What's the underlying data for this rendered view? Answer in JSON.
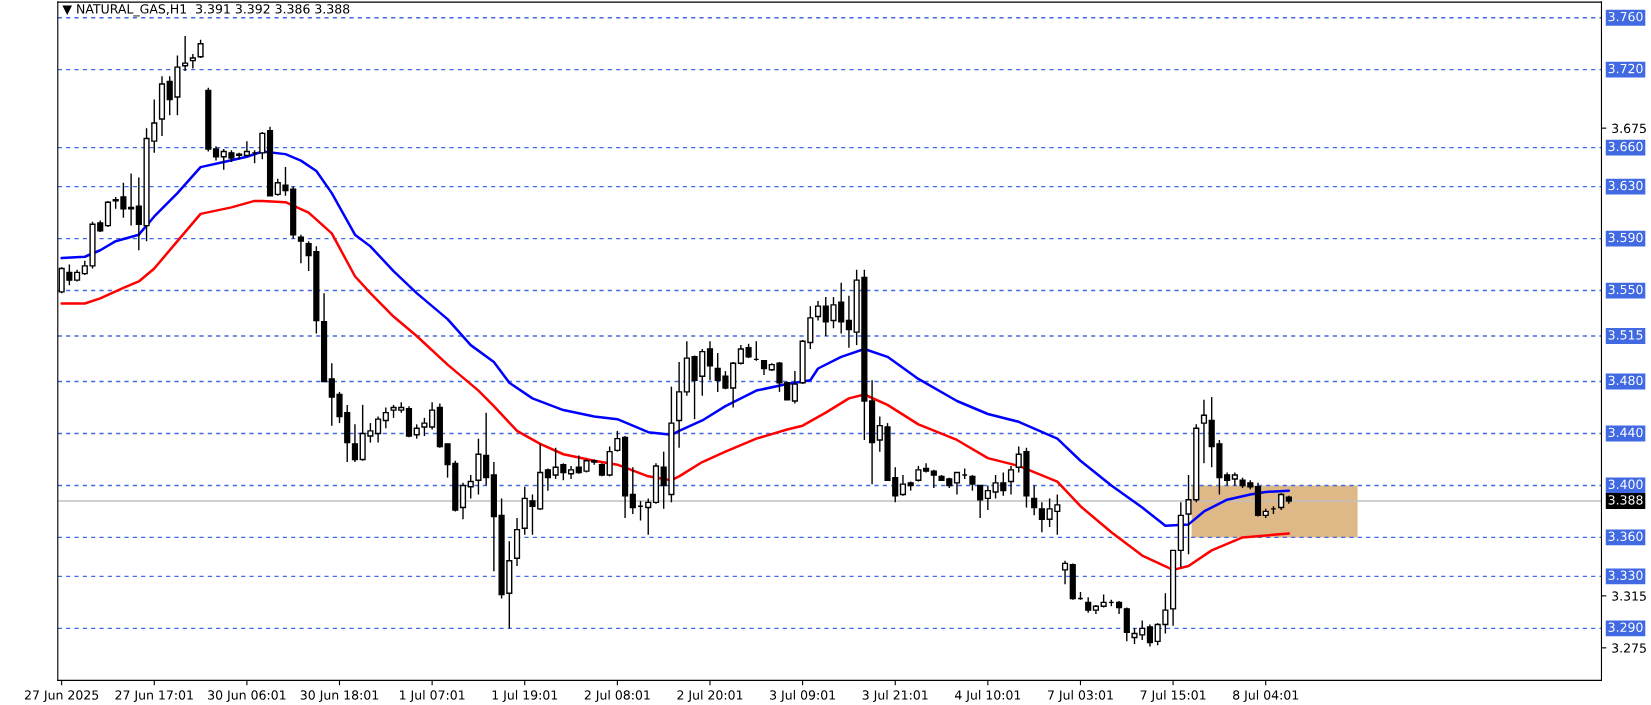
{
  "chart_data": {
    "type": "candlestick",
    "title": "▼ NATURAL_GAS,H1  3.391 3.392 3.386 3.388",
    "categories": [
      "27 Jun 2025",
      null,
      null,
      null,
      null,
      null,
      null,
      null,
      null,
      null,
      null,
      null,
      "27 Jun 17:01",
      null,
      null,
      null,
      null,
      null,
      null,
      null,
      null,
      null,
      null,
      null,
      "30 Jun 06:01",
      null,
      null,
      null,
      null,
      null,
      null,
      null,
      null,
      null,
      null,
      null,
      "30 Jun 18:01",
      null,
      null,
      null,
      null,
      null,
      null,
      null,
      null,
      null,
      null,
      null,
      "1 Jul 07:01",
      null,
      null,
      null,
      null,
      null,
      null,
      null,
      null,
      null,
      null,
      null,
      "1 Jul 19:01",
      null,
      null,
      null,
      null,
      null,
      null,
      null,
      null,
      null,
      null,
      null,
      "2 Jul 08:01",
      null,
      null,
      null,
      null,
      null,
      null,
      null,
      null,
      null,
      null,
      null,
      "2 Jul 20:01",
      null,
      null,
      null,
      null,
      null,
      null,
      null,
      null,
      null,
      null,
      null,
      "3 Jul 09:01",
      null,
      null,
      null,
      null,
      null,
      null,
      null,
      null,
      null,
      null,
      null,
      "3 Jul 21:01",
      null,
      null,
      null,
      null,
      null,
      null,
      null,
      null,
      null,
      null,
      null,
      "4 Jul 10:01",
      null,
      null,
      null,
      null,
      null,
      null,
      null,
      null,
      null,
      null,
      null,
      "7 Jul 03:01",
      null,
      null,
      null,
      null,
      null,
      null,
      null,
      null,
      null,
      null,
      null,
      "7 Jul 15:01",
      null,
      null,
      null,
      null,
      null,
      null,
      null,
      null,
      null,
      null,
      null,
      "8 Jul 04:01",
      null,
      null,
      null,
      null,
      null,
      null,
      null,
      null,
      null,
      null,
      null,
      null,
      null,
      null,
      null,
      null,
      null,
      null,
      null,
      null,
      null,
      null,
      null,
      null,
      null,
      null,
      null,
      null,
      null,
      null,
      null,
      null,
      null,
      null,
      null,
      null,
      null,
      null,
      null,
      null,
      null,
      null,
      null
    ],
    "ohlc": [
      [
        3.549,
        3.568,
        3.548,
        3.567
      ],
      [
        3.564,
        3.57,
        3.554,
        3.558
      ],
      [
        3.558,
        3.566,
        3.557,
        3.564
      ],
      [
        3.563,
        3.573,
        3.562,
        3.569
      ],
      [
        3.569,
        3.603,
        3.567,
        3.601
      ],
      [
        3.602,
        3.604,
        3.595,
        3.596
      ],
      [
        3.6,
        3.619,
        3.599,
        3.618
      ],
      [
        3.619,
        3.622,
        3.613,
        3.62
      ],
      [
        3.622,
        3.633,
        3.606,
        3.613
      ],
      [
        3.614,
        3.64,
        3.6,
        3.613
      ],
      [
        3.615,
        3.637,
        3.581,
        3.601
      ],
      [
        3.6,
        3.675,
        3.588,
        3.667
      ],
      [
        3.665,
        3.697,
        3.656,
        3.679
      ],
      [
        3.682,
        3.715,
        3.669,
        3.709
      ],
      [
        3.711,
        3.715,
        3.685,
        3.697
      ],
      [
        3.699,
        3.731,
        3.685,
        3.722
      ],
      [
        3.723,
        3.746,
        3.719,
        3.725
      ],
      [
        3.727,
        3.732,
        3.721,
        3.729
      ],
      [
        3.73,
        3.743,
        3.729,
        3.74
      ],
      [
        3.704,
        3.706,
        3.657,
        3.659
      ],
      [
        3.659,
        3.661,
        3.65,
        3.653
      ],
      [
        3.653,
        3.659,
        3.643,
        3.657
      ],
      [
        3.656,
        3.658,
        3.649,
        3.652
      ],
      [
        3.654,
        3.656,
        3.651,
        3.655
      ],
      [
        3.654,
        3.665,
        3.653,
        3.657
      ],
      [
        3.656,
        3.658,
        3.648,
        3.656
      ],
      [
        3.656,
        3.672,
        3.651,
        3.671
      ],
      [
        3.673,
        3.676,
        3.623,
        3.623
      ],
      [
        3.624,
        3.636,
        3.623,
        3.633
      ],
      [
        3.631,
        3.645,
        3.623,
        3.627
      ],
      [
        3.628,
        3.63,
        3.59,
        3.593
      ],
      [
        3.591,
        3.593,
        3.571,
        3.588
      ],
      [
        3.586,
        3.588,
        3.565,
        3.577
      ],
      [
        3.58,
        3.584,
        3.517,
        3.527
      ],
      [
        3.526,
        3.548,
        3.48,
        3.48
      ],
      [
        3.482,
        3.494,
        3.446,
        3.468
      ],
      [
        3.47,
        3.472,
        3.448,
        3.453
      ],
      [
        3.456,
        3.462,
        3.418,
        3.433
      ],
      [
        3.432,
        3.447,
        3.418,
        3.42
      ],
      [
        3.42,
        3.462,
        3.419,
        3.44
      ],
      [
        3.438,
        3.448,
        3.433,
        3.442
      ],
      [
        3.44,
        3.453,
        3.433,
        3.451
      ],
      [
        3.45,
        3.46,
        3.444,
        3.456
      ],
      [
        3.458,
        3.462,
        3.452,
        3.46
      ],
      [
        3.458,
        3.464,
        3.456,
        3.46
      ],
      [
        3.459,
        3.461,
        3.437,
        3.438
      ],
      [
        3.439,
        3.447,
        3.436,
        3.444
      ],
      [
        3.445,
        3.452,
        3.438,
        3.448
      ],
      [
        3.445,
        3.464,
        3.443,
        3.458
      ],
      [
        3.46,
        3.463,
        3.429,
        3.43
      ],
      [
        3.432,
        3.432,
        3.406,
        3.416
      ],
      [
        3.417,
        3.419,
        3.38,
        3.381
      ],
      [
        3.383,
        3.402,
        3.374,
        3.4
      ],
      [
        3.399,
        3.408,
        3.39,
        3.403
      ],
      [
        3.404,
        3.436,
        3.393,
        3.424
      ],
      [
        3.423,
        3.456,
        3.4,
        3.406
      ],
      [
        3.408,
        3.418,
        3.334,
        3.376
      ],
      [
        3.377,
        3.39,
        3.313,
        3.316
      ],
      [
        3.317,
        3.357,
        3.29,
        3.342
      ],
      [
        3.344,
        3.375,
        3.338,
        3.366
      ],
      [
        3.367,
        3.399,
        3.362,
        3.39
      ],
      [
        3.388,
        3.393,
        3.362,
        3.384
      ],
      [
        3.382,
        3.432,
        3.381,
        3.41
      ],
      [
        3.412,
        3.413,
        3.396,
        3.406
      ],
      [
        3.408,
        3.429,
        3.405,
        3.414
      ],
      [
        3.416,
        3.417,
        3.404,
        3.41
      ],
      [
        3.409,
        3.415,
        3.405,
        3.412
      ],
      [
        3.414,
        3.423,
        3.409,
        3.41
      ],
      [
        3.411,
        3.42,
        3.41,
        3.419
      ],
      [
        3.419,
        3.42,
        3.416,
        3.418
      ],
      [
        3.416,
        3.417,
        3.407,
        3.408
      ],
      [
        3.408,
        3.43,
        3.407,
        3.426
      ],
      [
        3.427,
        3.442,
        3.426,
        3.436
      ],
      [
        3.437,
        3.438,
        3.375,
        3.392
      ],
      [
        3.393,
        3.414,
        3.378,
        3.383
      ],
      [
        3.384,
        3.388,
        3.373,
        3.384
      ],
      [
        3.383,
        3.39,
        3.362,
        3.387
      ],
      [
        3.387,
        3.417,
        3.386,
        3.415
      ],
      [
        3.414,
        3.426,
        3.382,
        3.4
      ],
      [
        3.393,
        3.476,
        3.387,
        3.448
      ],
      [
        3.45,
        3.495,
        3.429,
        3.472
      ],
      [
        3.472,
        3.511,
        3.469,
        3.498
      ],
      [
        3.499,
        3.5,
        3.451,
        3.481
      ],
      [
        3.484,
        3.505,
        3.469,
        3.503
      ],
      [
        3.505,
        3.511,
        3.481,
        3.492
      ],
      [
        3.49,
        3.502,
        3.472,
        3.481
      ],
      [
        3.484,
        3.488,
        3.474,
        3.475
      ],
      [
        3.475,
        3.495,
        3.46,
        3.494
      ],
      [
        3.494,
        3.508,
        3.493,
        3.505
      ],
      [
        3.506,
        3.509,
        3.498,
        3.499
      ],
      [
        3.497,
        3.511,
        3.496,
        3.497
      ],
      [
        3.496,
        3.496,
        3.485,
        3.49
      ],
      [
        3.489,
        3.494,
        3.488,
        3.493
      ],
      [
        3.494,
        3.495,
        3.472,
        3.479
      ],
      [
        3.479,
        3.48,
        3.466,
        3.466
      ],
      [
        3.465,
        3.488,
        3.463,
        3.478
      ],
      [
        3.479,
        3.512,
        3.478,
        3.511
      ],
      [
        3.51,
        3.538,
        3.505,
        3.529
      ],
      [
        3.53,
        3.542,
        3.527,
        3.538
      ],
      [
        3.538,
        3.545,
        3.515,
        3.526
      ],
      [
        3.527,
        3.545,
        3.521,
        3.539
      ],
      [
        3.541,
        3.556,
        3.517,
        3.526
      ],
      [
        3.527,
        3.546,
        3.506,
        3.52
      ],
      [
        3.518,
        3.566,
        3.508,
        3.558
      ],
      [
        3.56,
        3.566,
        3.435,
        3.465
      ],
      [
        3.465,
        3.481,
        3.401,
        3.433
      ],
      [
        3.435,
        3.453,
        3.426,
        3.446
      ],
      [
        3.445,
        3.448,
        3.404,
        3.404
      ],
      [
        3.406,
        3.414,
        3.387,
        3.392
      ],
      [
        3.393,
        3.408,
        3.392,
        3.401
      ],
      [
        3.402,
        3.403,
        3.396,
        3.4
      ],
      [
        3.404,
        3.415,
        3.403,
        3.412
      ],
      [
        3.413,
        3.417,
        3.41,
        3.411
      ],
      [
        3.411,
        3.412,
        3.398,
        3.408
      ],
      [
        3.407,
        3.408,
        3.404,
        3.404
      ],
      [
        3.405,
        3.406,
        3.398,
        3.4
      ],
      [
        3.402,
        3.41,
        3.393,
        3.41
      ],
      [
        3.408,
        3.413,
        3.405,
        3.408
      ],
      [
        3.407,
        3.408,
        3.396,
        3.401
      ],
      [
        3.4,
        3.4,
        3.375,
        3.389
      ],
      [
        3.39,
        3.4,
        3.381,
        3.396
      ],
      [
        3.395,
        3.408,
        3.39,
        3.402
      ],
      [
        3.402,
        3.41,
        3.392,
        3.396
      ],
      [
        3.403,
        3.415,
        3.393,
        3.412
      ],
      [
        3.414,
        3.43,
        3.41,
        3.424
      ],
      [
        3.426,
        3.429,
        3.383,
        3.392
      ],
      [
        3.39,
        3.4,
        3.377,
        3.383
      ],
      [
        3.382,
        3.387,
        3.364,
        3.374
      ],
      [
        3.374,
        3.39,
        3.368,
        3.382
      ],
      [
        3.38,
        3.393,
        3.362,
        3.385
      ],
      [
        3.335,
        3.342,
        3.324,
        3.34
      ],
      [
        3.339,
        3.34,
        3.312,
        3.313
      ],
      [
        3.313,
        3.318,
        3.312,
        3.313
      ],
      [
        3.31,
        3.314,
        3.302,
        3.304
      ],
      [
        3.304,
        3.308,
        3.301,
        3.307
      ],
      [
        3.307,
        3.316,
        3.306,
        3.31
      ],
      [
        3.31,
        3.312,
        3.307,
        3.31
      ],
      [
        3.31,
        3.311,
        3.301,
        3.306
      ],
      [
        3.305,
        3.306,
        3.28,
        3.287
      ],
      [
        3.283,
        3.29,
        3.278,
        3.286
      ],
      [
        3.285,
        3.296,
        3.281,
        3.29
      ],
      [
        3.291,
        3.293,
        3.276,
        3.279
      ],
      [
        3.28,
        3.294,
        3.277,
        3.293
      ],
      [
        3.293,
        3.317,
        3.286,
        3.304
      ],
      [
        3.305,
        3.35,
        3.292,
        3.35
      ],
      [
        3.35,
        3.387,
        3.337,
        3.377
      ],
      [
        3.378,
        3.408,
        3.347,
        3.389
      ],
      [
        3.389,
        3.447,
        3.387,
        3.444
      ],
      [
        3.448,
        3.466,
        3.417,
        3.454
      ],
      [
        3.45,
        3.468,
        3.414,
        3.43
      ],
      [
        3.432,
        3.435,
        3.393,
        3.406
      ],
      [
        3.408,
        3.41,
        3.4,
        3.404
      ],
      [
        3.405,
        3.41,
        3.4,
        3.408
      ],
      [
        3.404,
        3.406,
        3.398,
        3.4
      ],
      [
        3.402,
        3.404,
        3.397,
        3.399
      ],
      [
        3.399,
        3.402,
        3.376,
        3.377
      ],
      [
        3.377,
        3.382,
        3.375,
        3.38
      ],
      [
        3.382,
        3.384,
        3.378,
        3.382
      ],
      [
        3.383,
        3.394,
        3.381,
        3.393
      ],
      [
        3.391,
        3.392,
        3.386,
        3.388
      ],
      null,
      null,
      null,
      null,
      null,
      null,
      null,
      null,
      null,
      null,
      null,
      null,
      null,
      null,
      null,
      null,
      null,
      null,
      null,
      null,
      null,
      null,
      null,
      null,
      null,
      null,
      null,
      null,
      null,
      null,
      null,
      null,
      null,
      null,
      null,
      null,
      null,
      null,
      null,
      null
    ],
    "series": [
      {
        "type": "line",
        "color": "#0000ff",
        "values": [
          3.575,
          null,
          null,
          3.576,
          null,
          3.581,
          null,
          3.588,
          null,
          null,
          3.593,
          null,
          3.607,
          null,
          null,
          3.625,
          null,
          null,
          3.645,
          null,
          null,
          3.649,
          null,
          null,
          3.653,
          null,
          3.657,
          null,
          null,
          3.655,
          null,
          3.65,
          null,
          3.642,
          null,
          3.625,
          null,
          null,
          3.593,
          null,
          3.584,
          null,
          null,
          3.565,
          null,
          null,
          3.548,
          null,
          null,
          null,
          3.528,
          null,
          null,
          3.508,
          null,
          null,
          3.495,
          null,
          3.479,
          null,
          null,
          3.467,
          null,
          null,
          null,
          3.458,
          null,
          null,
          null,
          3.453,
          null,
          null,
          3.451,
          null,
          null,
          null,
          3.441,
          null,
          null,
          3.439,
          3.442,
          null,
          null,
          3.45,
          null,
          null,
          3.461,
          null,
          null,
          null,
          3.473,
          null,
          null,
          null,
          3.478,
          null,
          null,
          3.481,
          3.49,
          null,
          null,
          3.499,
          null,
          null,
          3.505,
          null,
          null,
          3.499,
          null,
          null,
          null,
          3.482,
          null,
          null,
          null,
          null,
          3.465,
          null,
          null,
          null,
          3.455,
          null,
          null,
          null,
          3.449,
          null,
          null,
          null,
          null,
          3.436,
          null,
          null,
          3.419,
          null,
          null,
          null,
          3.4,
          null,
          null,
          null,
          3.383,
          null,
          null,
          3.369,
          null,
          null,
          3.37,
          null,
          3.38,
          null,
          null,
          3.389,
          null,
          null,
          3.393,
          null,
          3.395,
          null,
          null,
          3.396,
          null,
          null,
          null,
          null,
          null,
          null,
          null,
          null,
          null,
          null,
          null,
          null,
          null,
          null,
          null,
          null,
          null,
          null,
          null,
          null,
          null,
          null,
          null,
          null,
          null,
          null,
          null,
          null,
          null,
          null,
          null,
          null,
          null,
          null,
          null,
          null,
          null,
          null,
          null,
          null
        ]
      },
      {
        "type": "line",
        "color": "#ff0000",
        "values": [
          3.54,
          null,
          null,
          3.54,
          null,
          3.544,
          null,
          null,
          3.552,
          null,
          3.557,
          null,
          3.567,
          null,
          null,
          3.588,
          null,
          null,
          3.609,
          null,
          null,
          null,
          3.614,
          null,
          null,
          3.619,
          3.619,
          null,
          null,
          3.618,
          null,
          null,
          3.61,
          null,
          null,
          3.594,
          null,
          null,
          3.561,
          null,
          3.548,
          null,
          null,
          3.53,
          null,
          null,
          3.515,
          null,
          null,
          null,
          3.493,
          null,
          null,
          null,
          3.473,
          null,
          3.461,
          null,
          null,
          3.442,
          null,
          null,
          3.432,
          null,
          null,
          3.424,
          null,
          null,
          null,
          3.419,
          null,
          null,
          3.416,
          null,
          null,
          null,
          3.407,
          null,
          null,
          3.404,
          3.407,
          null,
          null,
          3.418,
          null,
          null,
          3.426,
          null,
          null,
          null,
          3.436,
          null,
          null,
          null,
          3.443,
          null,
          3.446,
          null,
          null,
          3.456,
          null,
          null,
          3.467,
          null,
          3.47,
          null,
          null,
          3.462,
          null,
          null,
          null,
          3.447,
          null,
          null,
          null,
          null,
          3.435,
          null,
          null,
          null,
          3.421,
          null,
          null,
          null,
          3.415,
          null,
          null,
          null,
          null,
          3.403,
          null,
          null,
          3.384,
          null,
          null,
          null,
          3.364,
          null,
          null,
          null,
          3.346,
          null,
          null,
          null,
          3.335,
          null,
          3.338,
          null,
          null,
          3.35,
          null,
          null,
          null,
          3.36,
          null,
          null,
          null,
          null,
          null,
          3.363,
          null,
          null,
          null,
          null,
          null,
          null,
          null,
          null,
          null,
          null,
          null,
          null,
          null,
          null,
          null,
          null,
          null,
          null,
          null,
          null,
          null,
          null,
          null,
          null,
          null,
          null,
          null,
          null,
          null,
          null,
          null,
          null,
          null,
          null,
          null,
          null,
          null,
          null,
          null,
          null
        ]
      }
    ],
    "ylim": [
      3.25,
      3.772
    ],
    "yticks": [
      3.675,
      3.315,
      3.275
    ],
    "ref_lines": [
      {
        "axis": "y",
        "value": 3.76,
        "label": "3.760",
        "color": "#4169e1",
        "line_style": "dashed"
      },
      {
        "axis": "y",
        "value": 3.72,
        "label": "3.720",
        "color": "#4169e1",
        "line_style": "dashed"
      },
      {
        "axis": "y",
        "value": 3.66,
        "label": "3.660",
        "color": "#4169e1",
        "line_style": "dashed"
      },
      {
        "axis": "y",
        "value": 3.63,
        "label": "3.630",
        "color": "#4169e1",
        "line_style": "dashed"
      },
      {
        "axis": "y",
        "value": 3.59,
        "label": "3.590",
        "color": "#4169e1",
        "line_style": "dashed"
      },
      {
        "axis": "y",
        "value": 3.55,
        "label": "3.550",
        "color": "#4169e1",
        "line_style": "dashed"
      },
      {
        "axis": "y",
        "value": 3.515,
        "label": "3.515",
        "color": "#4169e1",
        "line_style": "dashed"
      },
      {
        "axis": "y",
        "value": 3.48,
        "label": "3.480",
        "color": "#4169e1",
        "line_style": "dashed"
      },
      {
        "axis": "y",
        "value": 3.44,
        "label": "3.440",
        "color": "#4169e1",
        "line_style": "dashed"
      },
      {
        "axis": "y",
        "value": 3.4,
        "label": "3.400",
        "color": "#4169e1",
        "line_style": "dashed"
      },
      {
        "axis": "y",
        "value": 3.36,
        "label": "3.360",
        "color": "#4169e1",
        "line_style": "dashed"
      },
      {
        "axis": "y",
        "value": 3.33,
        "label": "3.330",
        "color": "#4169e1",
        "line_style": "dashed"
      },
      {
        "axis": "y",
        "value": 3.29,
        "label": "3.290",
        "color": "#4169e1",
        "line_style": "dashed"
      },
      {
        "axis": "y",
        "value": 3.388,
        "label": "3.388",
        "color": "#c0c0c0",
        "line_style": "solid"
      }
    ],
    "bands": [
      {
        "axis": "y",
        "from": 3.36,
        "to": 3.4,
        "color": "#deb887"
      }
    ],
    "grid": false,
    "legend": false
  }
}
